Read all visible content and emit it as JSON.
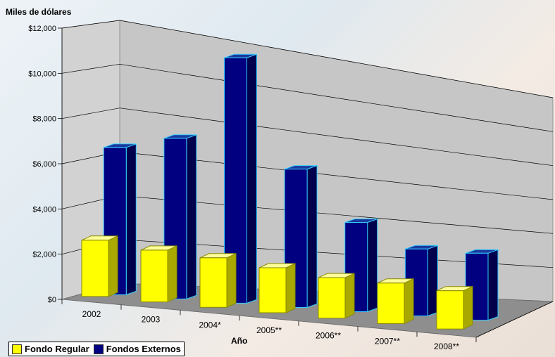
{
  "chart_data": {
    "type": "bar",
    "style": "3d-clustered",
    "ylabel": "Miles de dólares",
    "xlabel": "Año",
    "ylim": [
      0,
      12000
    ],
    "yticks": [
      0,
      2000,
      4000,
      6000,
      8000,
      10000,
      12000
    ],
    "ytick_labels": [
      "$0",
      "$2,000",
      "$4,000",
      "$6,000",
      "$8,000",
      "$10,000",
      "$12,000"
    ],
    "categories": [
      "2002",
      "2003",
      "2004*",
      "2005**",
      "2006**",
      "2007**",
      "2008**"
    ],
    "series": [
      {
        "name": "Fondo Regular",
        "color": "#ffff00",
        "values": [
          2500,
          2300,
          2200,
          2000,
          1800,
          1800,
          1700
        ]
      },
      {
        "name": "Fondos Externos",
        "color": "#000080",
        "values": [
          6600,
          7200,
          11000,
          6200,
          4000,
          3000,
          3000
        ]
      }
    ],
    "grid": true,
    "legend_position": "bottom-left"
  }
}
